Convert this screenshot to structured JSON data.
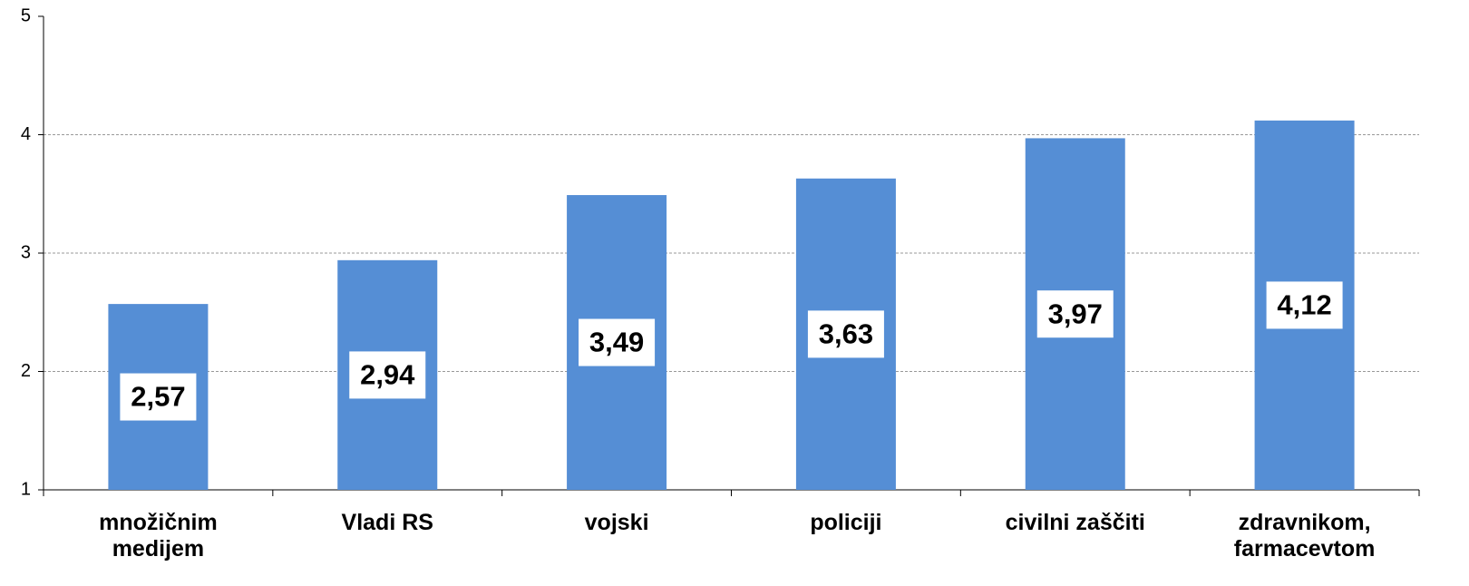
{
  "chart_data": {
    "type": "bar",
    "categories": [
      "množičnim medijem",
      "Vladi RS",
      "vojski",
      "policiji",
      "civilni zaščiti",
      "zdravnikom, farmacevtom"
    ],
    "values": [
      2.57,
      2.94,
      3.49,
      3.63,
      3.97,
      4.12
    ],
    "value_labels": [
      "2,57",
      "2,94",
      "3,49",
      "3,63",
      "3,97",
      "4,12"
    ],
    "color": "#558ed5",
    "ylim": [
      1,
      5
    ],
    "yticks": [
      1,
      2,
      3,
      4,
      5
    ],
    "grid": true
  }
}
